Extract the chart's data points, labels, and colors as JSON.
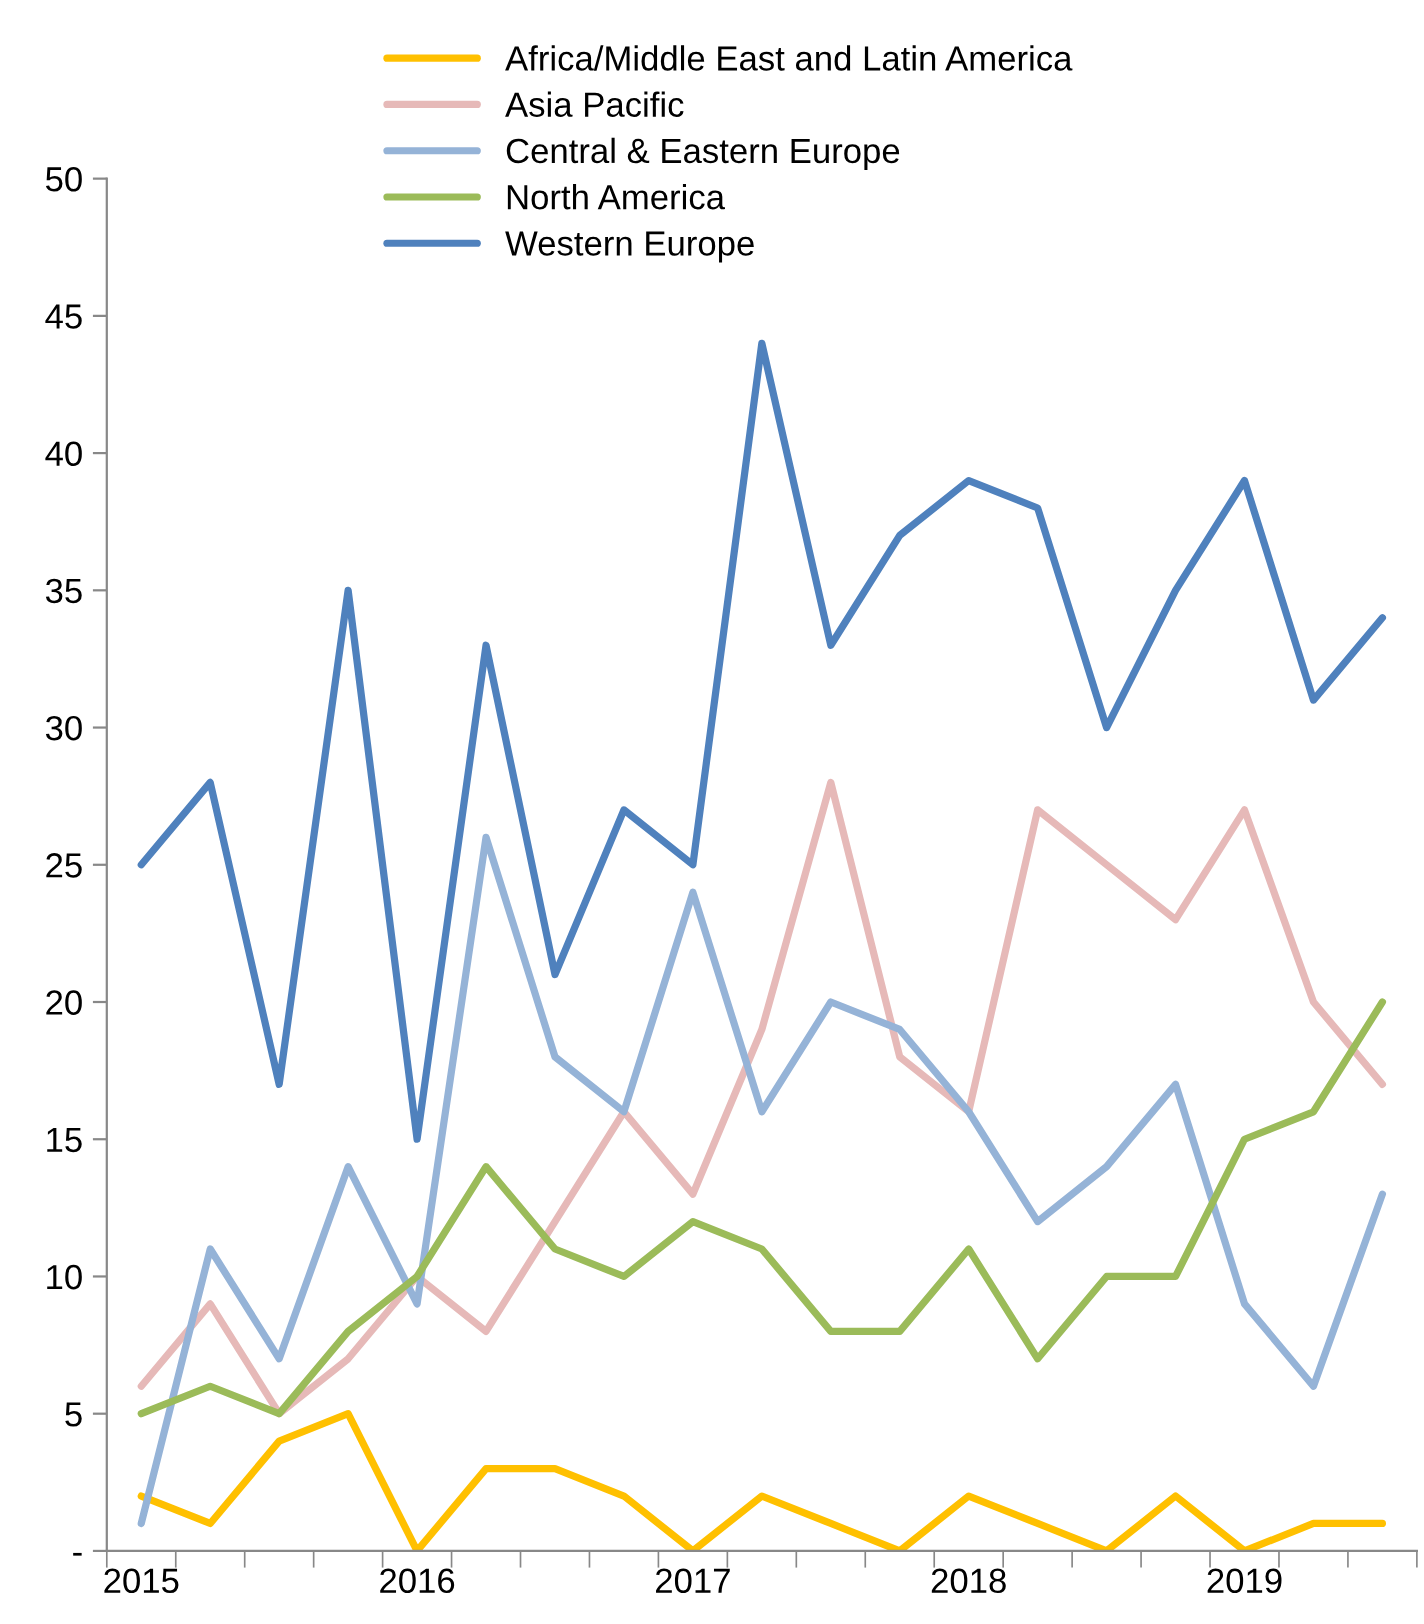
{
  "chart_data": {
    "type": "line",
    "categories": [
      "2015",
      null,
      null,
      null,
      "2016",
      null,
      null,
      null,
      "2017",
      null,
      null,
      null,
      "2018",
      null,
      null,
      null,
      "2019",
      null,
      null
    ],
    "series": [
      {
        "name": "Africa/Middle East and Latin America",
        "color": "#ffc000",
        "values": [
          2,
          1,
          4,
          5,
          0,
          3,
          3,
          2,
          0,
          2,
          1,
          0,
          2,
          1,
          0,
          2,
          0,
          1,
          1
        ]
      },
      {
        "name": "Asia Pacific",
        "color": "#e6b9b8",
        "values": [
          6,
          9,
          5,
          7,
          10,
          8,
          12,
          16,
          13,
          19,
          28,
          18,
          16,
          27,
          25,
          23,
          27,
          20,
          17
        ]
      },
      {
        "name": "Central & Eastern Europe",
        "color": "#95b3d7",
        "values": [
          1,
          11,
          7,
          14,
          9,
          26,
          18,
          16,
          24,
          16,
          20,
          19,
          16,
          12,
          14,
          17,
          9,
          6,
          13
        ]
      },
      {
        "name": "North America",
        "color": "#9bbb59",
        "values": [
          5,
          6,
          5,
          8,
          10,
          14,
          11,
          10,
          12,
          11,
          8,
          8,
          11,
          7,
          10,
          10,
          15,
          16,
          20
        ]
      },
      {
        "name": "Western Europe",
        "color": "#4f81bd",
        "values": [
          25,
          28,
          17,
          35,
          15,
          33,
          21,
          27,
          25,
          44,
          33,
          37,
          39,
          38,
          30,
          35,
          39,
          31,
          34
        ]
      }
    ],
    "ylim": [
      0,
      50
    ],
    "yticks": [
      {
        "value": 0,
        "label": "-"
      },
      5,
      10,
      15,
      20,
      25,
      30,
      35,
      40,
      45,
      50
    ],
    "grid": false,
    "legend": "top",
    "marker": "none",
    "line_style": "solid"
  }
}
